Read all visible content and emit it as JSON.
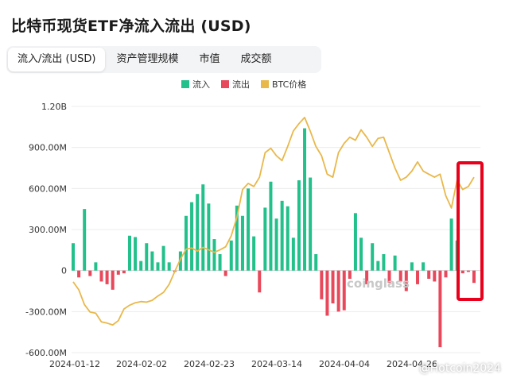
{
  "title": "比特币现货ETF净流入流出 (USD)",
  "tabs": [
    {
      "label": "流入/流出 (USD)",
      "active": true
    },
    {
      "label": "资产管理规模",
      "active": false
    },
    {
      "label": "市值",
      "active": false
    },
    {
      "label": "成交额",
      "active": false
    }
  ],
  "watermark_center": "coinglass",
  "watermark_corner": "@Hotcoin2024",
  "colors": {
    "inflow": "#22c08a",
    "outflow": "#e8485b",
    "btc": "#e9b84a",
    "highlight": "#e8001c"
  },
  "chart_data": {
    "type": "bar",
    "legend": [
      "流入",
      "流出",
      "BTC价格"
    ],
    "legend_position": "top-center",
    "y_ticks": [
      "1.20B",
      "900.00M",
      "600.00M",
      "300.00M",
      "0",
      "-300.00M",
      "-600.00M"
    ],
    "ylim": [
      -600000000,
      1200000000
    ],
    "x_ticks": [
      "2024-01-12",
      "2024-02-02",
      "2024-02-23",
      "2024-03-14",
      "2024-04-04",
      "2024-04-26"
    ],
    "flows_musd": [
      200,
      -50,
      450,
      -40,
      60,
      -80,
      -100,
      -140,
      -30,
      -20,
      255,
      245,
      70,
      200,
      140,
      60,
      180,
      60,
      -10,
      140,
      400,
      500,
      560,
      630,
      490,
      230,
      120,
      -40,
      220,
      475,
      400,
      600,
      250,
      -160,
      460,
      650,
      380,
      510,
      470,
      240,
      660,
      1040,
      680,
      120,
      -210,
      -330,
      -240,
      -300,
      -290,
      -60,
      420,
      240,
      -100,
      200,
      70,
      120,
      -90,
      110,
      -80,
      -150,
      60,
      -100,
      60,
      -60,
      -80,
      -560,
      -50,
      380,
      220,
      -20,
      -10,
      -90
    ],
    "btc_price_usd": [
      46500,
      45200,
      42800,
      41600,
      41400,
      40000,
      39800,
      39500,
      40200,
      42100,
      42700,
      43100,
      43300,
      43200,
      43500,
      44200,
      44800,
      46100,
      48200,
      50200,
      51800,
      52000,
      51500,
      52100,
      51700,
      51300,
      51700,
      52200,
      54000,
      57000,
      61500,
      62500,
      62000,
      63500,
      67500,
      68200,
      67000,
      66200,
      68500,
      71000,
      72200,
      73200,
      71000,
      68500,
      67000,
      64000,
      63500,
      67500,
      69000,
      70000,
      69500,
      71200,
      70000,
      68500,
      69800,
      70000,
      67500,
      65000,
      63000,
      63500,
      64500,
      66000,
      64500,
      64000,
      63500,
      64000,
      60500,
      58500,
      63000,
      61500,
      62000,
      63500
    ]
  }
}
